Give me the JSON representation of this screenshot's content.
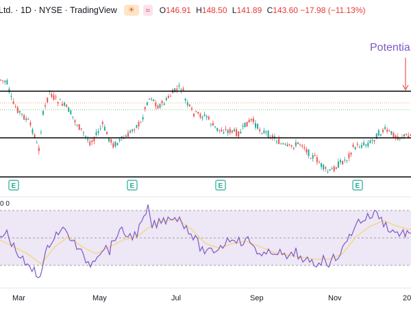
{
  "legend": {
    "title": "Ltd. · 1D · NYSE · TradingView",
    "open_key": "O",
    "open": "146.91",
    "high_key": "H",
    "high": "148.50",
    "low_key": "L",
    "low": "141.89",
    "close_key": "C",
    "close": "143.60",
    "change": "−17.98 (−11.13%)"
  },
  "annotation": {
    "text": "Potentia"
  },
  "rsi_label": "0  0",
  "earnings_marker": "E",
  "x_axis": {
    "labels": [
      "Mar",
      "May",
      "Jul",
      "Sep",
      "Nov",
      "20"
    ]
  },
  "colors": {
    "up": "#26a69a",
    "down": "#ef5350",
    "rsi": "#7e57c2",
    "rsi_ma": "#f5d66b",
    "rsi_band": "#ede7f6",
    "annotation": "#7e57c2",
    "level_line": "#000000"
  },
  "chart_data": {
    "type": "candlestick",
    "horizontal_levels": [
      3,
      2,
      1
    ],
    "seed_path": [
      [
        0,
        116
      ],
      [
        10,
        120
      ],
      [
        18,
        150
      ],
      [
        30,
        165
      ],
      [
        42,
        178
      ],
      [
        52,
        200
      ],
      [
        56,
        225
      ],
      [
        62,
        170
      ],
      [
        68,
        150
      ],
      [
        72,
        132
      ],
      [
        80,
        145
      ],
      [
        90,
        150
      ],
      [
        100,
        160
      ],
      [
        112,
        180
      ],
      [
        122,
        195
      ],
      [
        132,
        208
      ],
      [
        140,
        198
      ],
      [
        150,
        182
      ],
      [
        158,
        200
      ],
      [
        166,
        212
      ],
      [
        175,
        205
      ],
      [
        185,
        200
      ],
      [
        196,
        185
      ],
      [
        206,
        180
      ],
      [
        214,
        150
      ],
      [
        220,
        140
      ],
      [
        230,
        155
      ],
      [
        240,
        150
      ],
      [
        248,
        140
      ],
      [
        258,
        130
      ],
      [
        266,
        128
      ],
      [
        272,
        150
      ],
      [
        282,
        165
      ],
      [
        292,
        168
      ],
      [
        302,
        170
      ],
      [
        312,
        185
      ],
      [
        320,
        190
      ],
      [
        330,
        190
      ],
      [
        340,
        192
      ],
      [
        350,
        195
      ],
      [
        360,
        180
      ],
      [
        368,
        175
      ],
      [
        378,
        188
      ],
      [
        390,
        195
      ],
      [
        400,
        200
      ],
      [
        410,
        210
      ],
      [
        420,
        215
      ],
      [
        430,
        212
      ],
      [
        440,
        208
      ],
      [
        452,
        225
      ],
      [
        462,
        232
      ],
      [
        472,
        245
      ],
      [
        480,
        252
      ],
      [
        488,
        245
      ],
      [
        496,
        238
      ],
      [
        506,
        232
      ],
      [
        516,
        215
      ],
      [
        526,
        212
      ],
      [
        536,
        210
      ],
      [
        544,
        205
      ],
      [
        552,
        195
      ],
      [
        562,
        190
      ],
      [
        572,
        195
      ],
      [
        582,
        200
      ],
      [
        600,
        197
      ]
    ],
    "rsi_series": [
      [
        0,
        345
      ],
      [
        10,
        340
      ],
      [
        20,
        360
      ],
      [
        30,
        375
      ],
      [
        40,
        390
      ],
      [
        50,
        395
      ],
      [
        56,
        405
      ],
      [
        64,
        380
      ],
      [
        72,
        355
      ],
      [
        82,
        340
      ],
      [
        92,
        335
      ],
      [
        102,
        345
      ],
      [
        112,
        360
      ],
      [
        122,
        375
      ],
      [
        132,
        385
      ],
      [
        142,
        370
      ],
      [
        152,
        360
      ],
      [
        160,
        365
      ],
      [
        168,
        345
      ],
      [
        178,
        338
      ],
      [
        190,
        345
      ],
      [
        200,
        340
      ],
      [
        210,
        320
      ],
      [
        216,
        305
      ],
      [
        222,
        330
      ],
      [
        232,
        325
      ],
      [
        242,
        320
      ],
      [
        252,
        315
      ],
      [
        262,
        320
      ],
      [
        272,
        330
      ],
      [
        282,
        345
      ],
      [
        292,
        360
      ],
      [
        302,
        370
      ],
      [
        312,
        365
      ],
      [
        322,
        360
      ],
      [
        332,
        350
      ],
      [
        342,
        345
      ],
      [
        352,
        355
      ],
      [
        362,
        350
      ],
      [
        372,
        360
      ],
      [
        382,
        375
      ],
      [
        392,
        370
      ],
      [
        402,
        365
      ],
      [
        412,
        372
      ],
      [
        422,
        378
      ],
      [
        432,
        365
      ],
      [
        442,
        385
      ],
      [
        452,
        380
      ],
      [
        462,
        385
      ],
      [
        472,
        378
      ],
      [
        480,
        383
      ],
      [
        490,
        375
      ],
      [
        500,
        365
      ],
      [
        510,
        345
      ],
      [
        520,
        325
      ],
      [
        530,
        320
      ],
      [
        540,
        315
      ],
      [
        550,
        310
      ],
      [
        560,
        325
      ],
      [
        570,
        335
      ],
      [
        580,
        340
      ],
      [
        600,
        340
      ]
    ],
    "rsi_ma_series": [
      [
        0,
        350
      ],
      [
        40,
        370
      ],
      [
        60,
        385
      ],
      [
        80,
        360
      ],
      [
        100,
        345
      ],
      [
        120,
        360
      ],
      [
        140,
        370
      ],
      [
        160,
        360
      ],
      [
        180,
        350
      ],
      [
        200,
        345
      ],
      [
        220,
        330
      ],
      [
        240,
        322
      ],
      [
        260,
        320
      ],
      [
        280,
        335
      ],
      [
        300,
        355
      ],
      [
        320,
        362
      ],
      [
        340,
        355
      ],
      [
        360,
        352
      ],
      [
        380,
        360
      ],
      [
        400,
        368
      ],
      [
        420,
        372
      ],
      [
        440,
        375
      ],
      [
        460,
        378
      ],
      [
        480,
        378
      ],
      [
        500,
        370
      ],
      [
        520,
        345
      ],
      [
        540,
        330
      ],
      [
        560,
        322
      ],
      [
        580,
        330
      ],
      [
        600,
        335
      ]
    ]
  }
}
